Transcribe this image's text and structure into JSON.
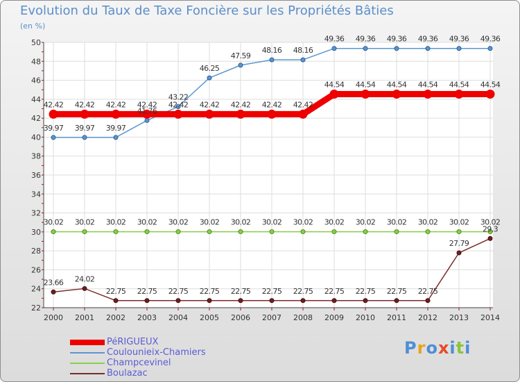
{
  "chart_data": {
    "type": "line",
    "title": "Evolution du Taux de Taxe Foncière sur les Propriétés Bâties",
    "ylabel": "(en %)",
    "xlabel": "",
    "ylim": [
      22,
      50
    ],
    "yticks": [
      "22",
      "24",
      "26",
      "28",
      "30",
      "32",
      "34",
      "36",
      "38",
      "40",
      "42",
      "44",
      "46",
      "48",
      "50"
    ],
    "categories": [
      "2000",
      "2001",
      "2002",
      "2003",
      "2004",
      "2005",
      "2006",
      "2007",
      "2008",
      "2009",
      "2010",
      "2011",
      "2012",
      "2013",
      "2014"
    ],
    "series": [
      {
        "name": "PéRIGUEUX",
        "color": "#ee0000",
        "values": [
          42.42,
          42.42,
          42.42,
          42.42,
          42.42,
          42.42,
          42.42,
          42.42,
          42.42,
          44.54,
          44.54,
          44.54,
          44.54,
          44.54,
          44.54
        ],
        "labels": [
          "42.42",
          "42.42",
          "42.42",
          "42.42",
          "42.42",
          "42.42",
          "42.42",
          "42.42",
          "42.42",
          "44.54",
          "44.54",
          "44.54",
          "44.54",
          "44.54",
          "44.54"
        ]
      },
      {
        "name": "Coulounieix-Chamiers",
        "color": "#5b96d0",
        "values": [
          39.97,
          39.97,
          39.97,
          41.76,
          43.22,
          46.25,
          47.59,
          48.16,
          48.16,
          49.36,
          49.36,
          49.36,
          49.36,
          49.36,
          49.36
        ],
        "labels": [
          "39.97",
          "39.97",
          "39.97",
          "41.76",
          "43.22",
          "46.25",
          "47.59",
          "48.16",
          "48.16",
          "49.36",
          "49.36",
          "49.36",
          "49.36",
          "49.36",
          "49.36"
        ]
      },
      {
        "name": "Champcevinel",
        "color": "#88d048",
        "values": [
          30.02,
          30.02,
          30.02,
          30.02,
          30.02,
          30.02,
          30.02,
          30.02,
          30.02,
          30.02,
          30.02,
          30.02,
          30.02,
          30.02,
          30.02
        ],
        "labels": [
          "30.02",
          "30.02",
          "30.02",
          "30.02",
          "30.02",
          "30.02",
          "30.02",
          "30.02",
          "30.02",
          "30.02",
          "30.02",
          "30.02",
          "30.02",
          "30.02",
          "30.02"
        ]
      },
      {
        "name": "Boulazac",
        "color": "#7a2a2a",
        "values": [
          23.66,
          24.02,
          22.75,
          22.75,
          22.75,
          22.75,
          22.75,
          22.75,
          22.75,
          22.75,
          22.75,
          22.75,
          22.75,
          27.79,
          29.3
        ],
        "labels": [
          "23.66",
          "24.02",
          "22.75",
          "22.75",
          "22.75",
          "22.75",
          "22.75",
          "22.75",
          "22.75",
          "22.75",
          "22.75",
          "22.75",
          "22.75",
          "27.79",
          "29.3"
        ]
      }
    ]
  },
  "branding": {
    "logo_letters": [
      "P",
      "r",
      "o",
      "x",
      "i",
      "t",
      "i"
    ],
    "logo_colors": [
      "#4c8fd6",
      "#e8a21e",
      "#4c8fd6",
      "#e84a2a",
      "#4c8fd6",
      "#8bc43a",
      "#4c8fd6"
    ]
  }
}
